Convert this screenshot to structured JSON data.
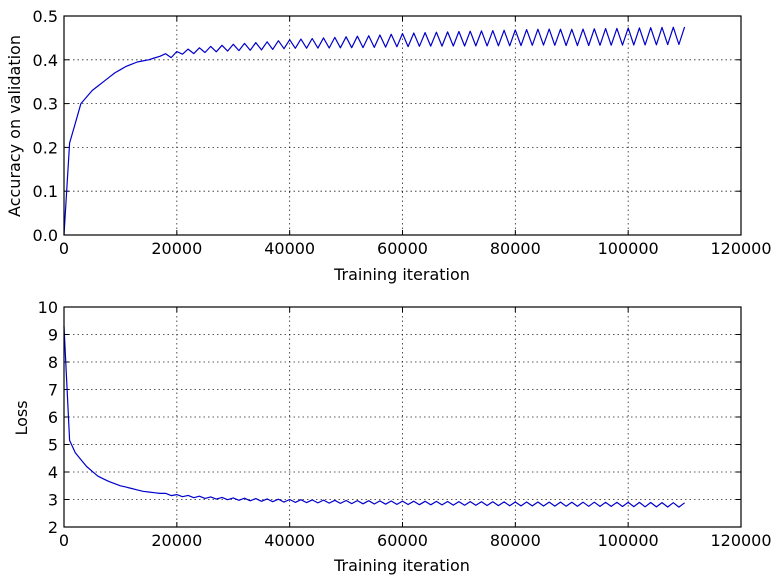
{
  "chart_data": [
    {
      "type": "line",
      "xlabel": "Training iteration",
      "ylabel": "Accuracy on validation",
      "xlim": [
        0,
        120000
      ],
      "ylim": [
        0.0,
        0.5
      ],
      "x_ticks": [
        "0",
        "20000",
        "40000",
        "60000",
        "80000",
        "100000",
        "120000"
      ],
      "y_ticks": [
        "0.0",
        "0.1",
        "0.2",
        "0.3",
        "0.4",
        "0.5"
      ],
      "grid": true,
      "series": [
        {
          "color": "#0000cc",
          "points": [
            [
              0,
              0.0
            ],
            [
              1000,
              0.21
            ],
            [
              3000,
              0.3
            ],
            [
              5000,
              0.33
            ],
            [
              7000,
              0.35
            ],
            [
              9000,
              0.37
            ],
            [
              11000,
              0.385
            ],
            [
              13000,
              0.395
            ],
            [
              15000,
              0.4
            ],
            [
              17000,
              0.408
            ],
            [
              19000,
              0.41
            ],
            [
              21000,
              0.418
            ],
            [
              23000,
              0.42
            ],
            [
              25000,
              0.423
            ],
            [
              27000,
              0.425
            ],
            [
              30000,
              0.428
            ],
            [
              33000,
              0.43
            ],
            [
              36000,
              0.432
            ],
            [
              40000,
              0.436
            ],
            [
              45000,
              0.438
            ],
            [
              50000,
              0.44
            ],
            [
              55000,
              0.442
            ],
            [
              60000,
              0.445
            ],
            [
              65000,
              0.447
            ],
            [
              70000,
              0.448
            ],
            [
              75000,
              0.449
            ],
            [
              80000,
              0.45
            ],
            [
              85000,
              0.452
            ],
            [
              90000,
              0.451
            ],
            [
              95000,
              0.452
            ],
            [
              100000,
              0.453
            ],
            [
              105000,
              0.454
            ],
            [
              110000,
              0.455
            ]
          ],
          "fluctuation": [
            [
              20000,
              0.005
            ],
            [
              40000,
              0.01
            ],
            [
              60000,
              0.015
            ],
            [
              80000,
              0.018
            ],
            [
              110000,
              0.02
            ]
          ]
        }
      ]
    },
    {
      "type": "line",
      "xlabel": "Training iteration",
      "ylabel": "Loss",
      "xlim": [
        0,
        120000
      ],
      "ylim": [
        2,
        10
      ],
      "x_ticks": [
        "0",
        "20000",
        "40000",
        "60000",
        "80000",
        "100000",
        "120000"
      ],
      "y_ticks": [
        "2",
        "3",
        "4",
        "5",
        "6",
        "7",
        "8",
        "9",
        "10"
      ],
      "grid": true,
      "series": [
        {
          "color": "#0000cc",
          "points": [
            [
              0,
              9.3
            ],
            [
              1000,
              5.15
            ],
            [
              2000,
              4.7
            ],
            [
              4000,
              4.2
            ],
            [
              6000,
              3.85
            ],
            [
              8000,
              3.65
            ],
            [
              10000,
              3.5
            ],
            [
              12000,
              3.4
            ],
            [
              14000,
              3.3
            ],
            [
              17000,
              3.22
            ],
            [
              20000,
              3.15
            ],
            [
              23000,
              3.1
            ],
            [
              26000,
              3.06
            ],
            [
              30000,
              3.02
            ],
            [
              35000,
              2.98
            ],
            [
              40000,
              2.95
            ],
            [
              50000,
              2.91
            ],
            [
              60000,
              2.88
            ],
            [
              70000,
              2.86
            ],
            [
              80000,
              2.84
            ],
            [
              90000,
              2.83
            ],
            [
              100000,
              2.82
            ],
            [
              110000,
              2.8
            ]
          ],
          "fluctuation": [
            [
              20000,
              0.03
            ],
            [
              40000,
              0.05
            ],
            [
              60000,
              0.06
            ],
            [
              80000,
              0.07
            ],
            [
              110000,
              0.08
            ]
          ]
        }
      ]
    }
  ]
}
